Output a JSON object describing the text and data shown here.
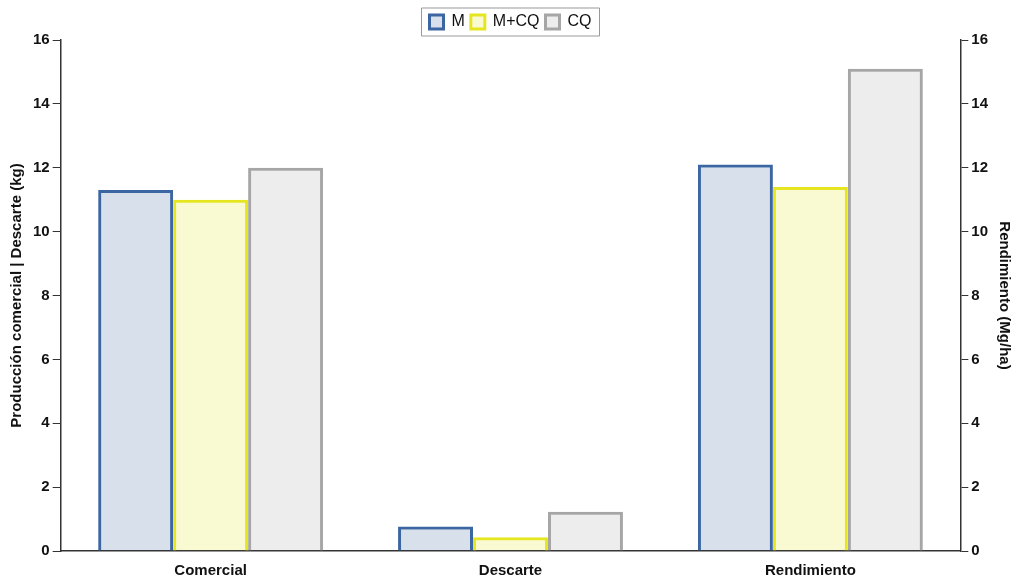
{
  "chart_data": {
    "type": "bar",
    "categories": [
      "Comercial",
      "Descarte",
      "Rendimiento"
    ],
    "series": [
      {
        "name": "M",
        "color": "#3b66a2",
        "values": [
          11.3,
          0.77,
          12.1
        ]
      },
      {
        "name": "M+CQ",
        "color": "#e6e620",
        "values": [
          11.0,
          0.43,
          11.4
        ]
      },
      {
        "name": "CQ",
        "color": "#a6a6a6",
        "values": [
          12.0,
          1.23,
          15.1
        ]
      }
    ],
    "ylabel": "Producción comercial | Descarte (kg)",
    "y2label": "Rendimiento (Mg/ha)",
    "ylim": [
      0,
      16
    ],
    "yticks": [
      0,
      2,
      4,
      6,
      8,
      10,
      12,
      14,
      16
    ],
    "y2lim": [
      0,
      16
    ],
    "y2ticks": [
      0,
      2,
      4,
      6,
      8,
      10,
      12,
      14,
      16
    ],
    "grid": false,
    "legend": "top"
  }
}
